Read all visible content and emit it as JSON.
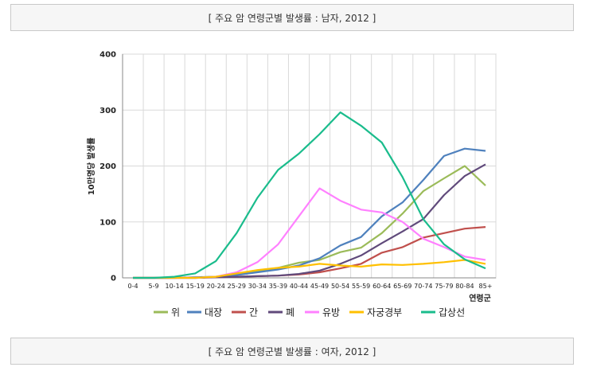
{
  "captions": {
    "top": "[ 주요 암 연령군별 발생률 : 남자, 2012 ]",
    "bottom": "[ 주요 암 연령군별 발생률 : 여자, 2012 ]"
  },
  "chart_data": {
    "type": "line",
    "title": "",
    "xlabel": "연령군",
    "ylabel": "10만명당 발생률",
    "ylim": [
      0,
      400
    ],
    "yticks": [
      0,
      100,
      200,
      300,
      400
    ],
    "grid": true,
    "legend_position": "bottom",
    "categories": [
      "0-4",
      "5-9",
      "10-14",
      "15-19",
      "20-24",
      "25-29",
      "30-34",
      "35-39",
      "40-44",
      "45-49",
      "50-54",
      "55-59",
      "60-64",
      "65-69",
      "70-74",
      "75-79",
      "80-84",
      "85+"
    ],
    "series": [
      {
        "name": "위",
        "color": "#9bbb59",
        "values": [
          0,
          0,
          0,
          1,
          2,
          6,
          12,
          18,
          27,
          32,
          46,
          54,
          80,
          115,
          155,
          178,
          200,
          165
        ]
      },
      {
        "name": "대장",
        "color": "#4f81bd",
        "values": [
          0,
          0,
          0,
          1,
          2,
          5,
          10,
          15,
          22,
          35,
          58,
          73,
          110,
          135,
          175,
          218,
          231,
          227
        ]
      },
      {
        "name": "간",
        "color": "#c0504d",
        "values": [
          0,
          0,
          0,
          0,
          1,
          2,
          3,
          4,
          6,
          10,
          17,
          25,
          45,
          55,
          72,
          80,
          88,
          91
        ]
      },
      {
        "name": "폐",
        "color": "#604a7b",
        "values": [
          0,
          0,
          0,
          0,
          1,
          2,
          3,
          4,
          7,
          13,
          25,
          40,
          62,
          83,
          105,
          148,
          182,
          203
        ]
      },
      {
        "name": "유방",
        "color": "#ff80ff",
        "values": [
          0,
          0,
          0,
          0,
          2,
          10,
          28,
          60,
          110,
          160,
          138,
          122,
          117,
          100,
          70,
          55,
          38,
          32
        ]
      },
      {
        "name": "자궁경부",
        "color": "#ffc000",
        "values": [
          0,
          0,
          0,
          0,
          2,
          8,
          14,
          18,
          20,
          25,
          22,
          20,
          24,
          23,
          25,
          28,
          32,
          25
        ]
      },
      {
        "name": "갑상선",
        "color": "#1abc8c",
        "values": [
          0,
          0,
          2,
          8,
          30,
          80,
          143,
          193,
          222,
          257,
          296,
          272,
          242,
          180,
          105,
          60,
          33,
          17
        ]
      }
    ]
  }
}
